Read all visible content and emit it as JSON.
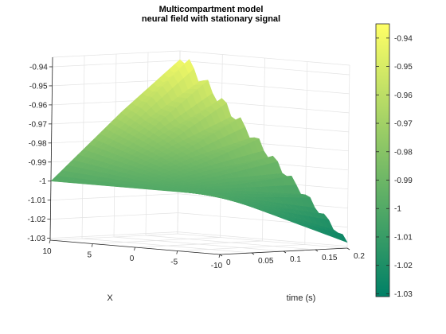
{
  "chart_data": {
    "type": "surface",
    "title": [
      "Multicompartment model",
      "neural field with stationary signal"
    ],
    "xlabel": "time (s)",
    "ylabel": "X",
    "zlabel": "",
    "xlim": [
      0,
      0.2
    ],
    "ylim": [
      -10,
      10
    ],
    "zlim": [
      -1.031,
      -0.935
    ],
    "x_ticks": [
      "0",
      "0.05",
      "0.1",
      "0.15",
      "0.2"
    ],
    "y_ticks": [
      "10",
      "5",
      "0",
      "-5",
      "-10"
    ],
    "z_ticks": [
      "-0.94",
      "-0.95",
      "-0.96",
      "-0.97",
      "-0.98",
      "-0.99",
      "-1",
      "-1.01",
      "-1.02",
      "-1.03"
    ],
    "colorbar_ticks": [
      "-0.94",
      "-0.95",
      "-0.96",
      "-0.97",
      "-0.98",
      "-0.99",
      "-1",
      "-1.01",
      "-1.02",
      "-1.03"
    ],
    "colormap": "summer",
    "colors": {
      "low": "#008066",
      "high": "#ffff66"
    },
    "grid": true,
    "surface_corners": [
      {
        "t": 0,
        "x": 10,
        "v": -1.0
      },
      {
        "t": 0,
        "x": -10,
        "v": -1.0
      },
      {
        "t": 0.2,
        "x": 10,
        "v": -0.937
      },
      {
        "t": 0.2,
        "x": -10,
        "v": -1.028
      }
    ]
  }
}
